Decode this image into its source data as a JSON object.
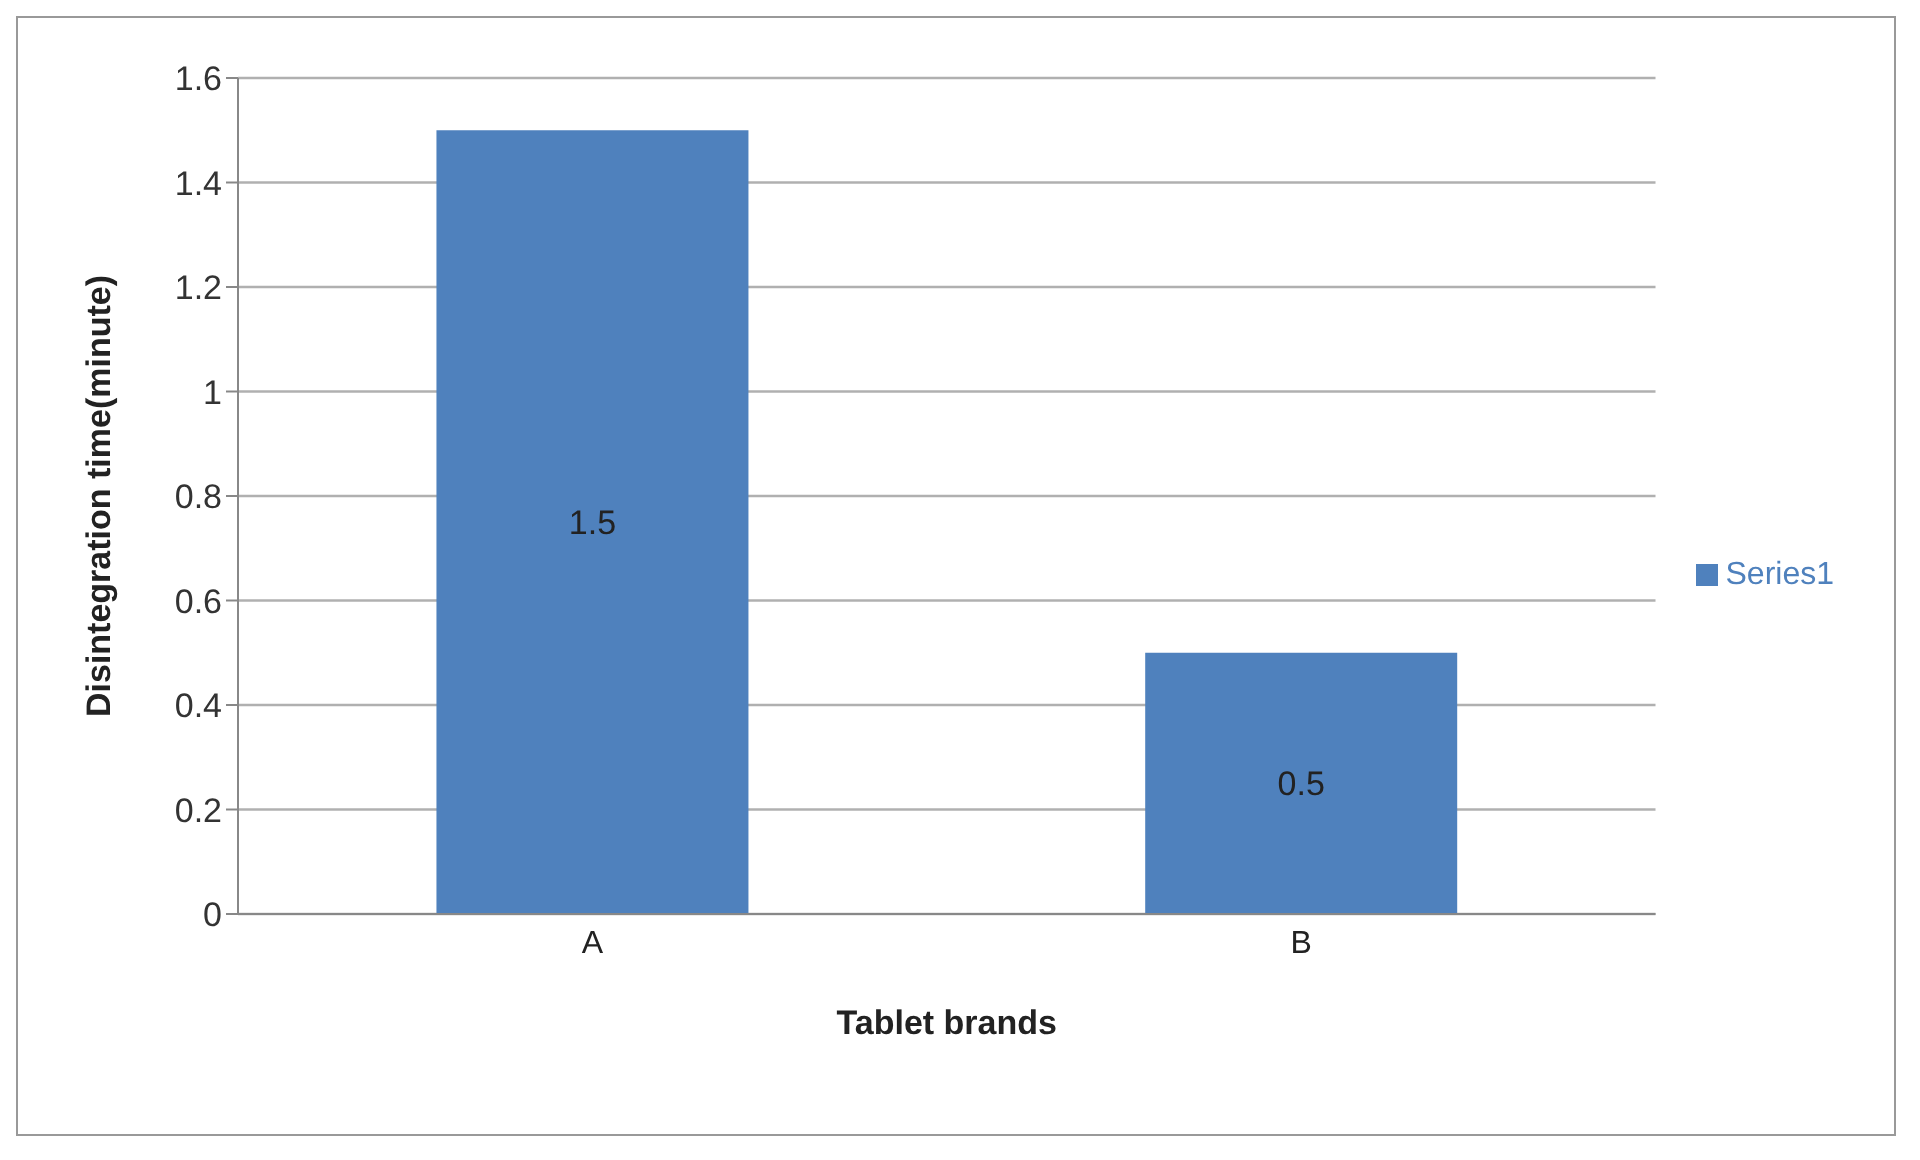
{
  "chart_data": {
    "type": "bar",
    "xlabel": "Tablet brands",
    "ylabel": "Disintegration time(minute)",
    "categories": [
      "A",
      "B"
    ],
    "series": [
      {
        "name": "Series1",
        "color": "#4f81bd",
        "values": [
          1.5,
          0.5
        ]
      }
    ],
    "ylim": [
      0,
      1.6
    ],
    "yticks": [
      0,
      0.2,
      0.4,
      0.6,
      0.8,
      1,
      1.2,
      1.4,
      1.6
    ],
    "grid": "y",
    "legend": "right",
    "data_labels": true
  }
}
